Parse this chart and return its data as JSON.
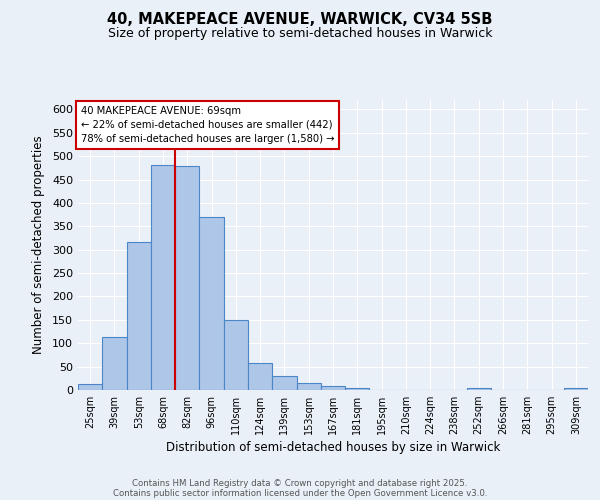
{
  "title_line1": "40, MAKEPEACE AVENUE, WARWICK, CV34 5SB",
  "title_line2": "Size of property relative to semi-detached houses in Warwick",
  "xlabel": "Distribution of semi-detached houses by size in Warwick",
  "ylabel": "Number of semi-detached properties",
  "categories": [
    "25sqm",
    "39sqm",
    "53sqm",
    "68sqm",
    "82sqm",
    "96sqm",
    "110sqm",
    "124sqm",
    "139sqm",
    "153sqm",
    "167sqm",
    "181sqm",
    "195sqm",
    "210sqm",
    "224sqm",
    "238sqm",
    "252sqm",
    "266sqm",
    "281sqm",
    "295sqm",
    "309sqm"
  ],
  "values": [
    13,
    113,
    317,
    480,
    478,
    370,
    150,
    58,
    29,
    15,
    9,
    4,
    1,
    0,
    0,
    1,
    5,
    1,
    0,
    0,
    4
  ],
  "bar_color": "#aec6e8",
  "bar_edge_color": "#4a86c8",
  "background_color": "#eaf0f8",
  "grid_color": "#ffffff",
  "annotation_text": "40 MAKEPEACE AVENUE: 69sqm\n← 22% of semi-detached houses are smaller (442)\n78% of semi-detached houses are larger (1,580) →",
  "annotation_box_color": "#ffffff",
  "annotation_box_edge_color": "#cc0000",
  "property_line_color": "#cc0000",
  "property_line_x": 3.5,
  "ylim": [
    0,
    620
  ],
  "yticks": [
    0,
    50,
    100,
    150,
    200,
    250,
    300,
    350,
    400,
    450,
    500,
    550,
    600
  ],
  "footer_line1": "Contains HM Land Registry data © Crown copyright and database right 2025.",
  "footer_line2": "Contains public sector information licensed under the Open Government Licence v3.0."
}
